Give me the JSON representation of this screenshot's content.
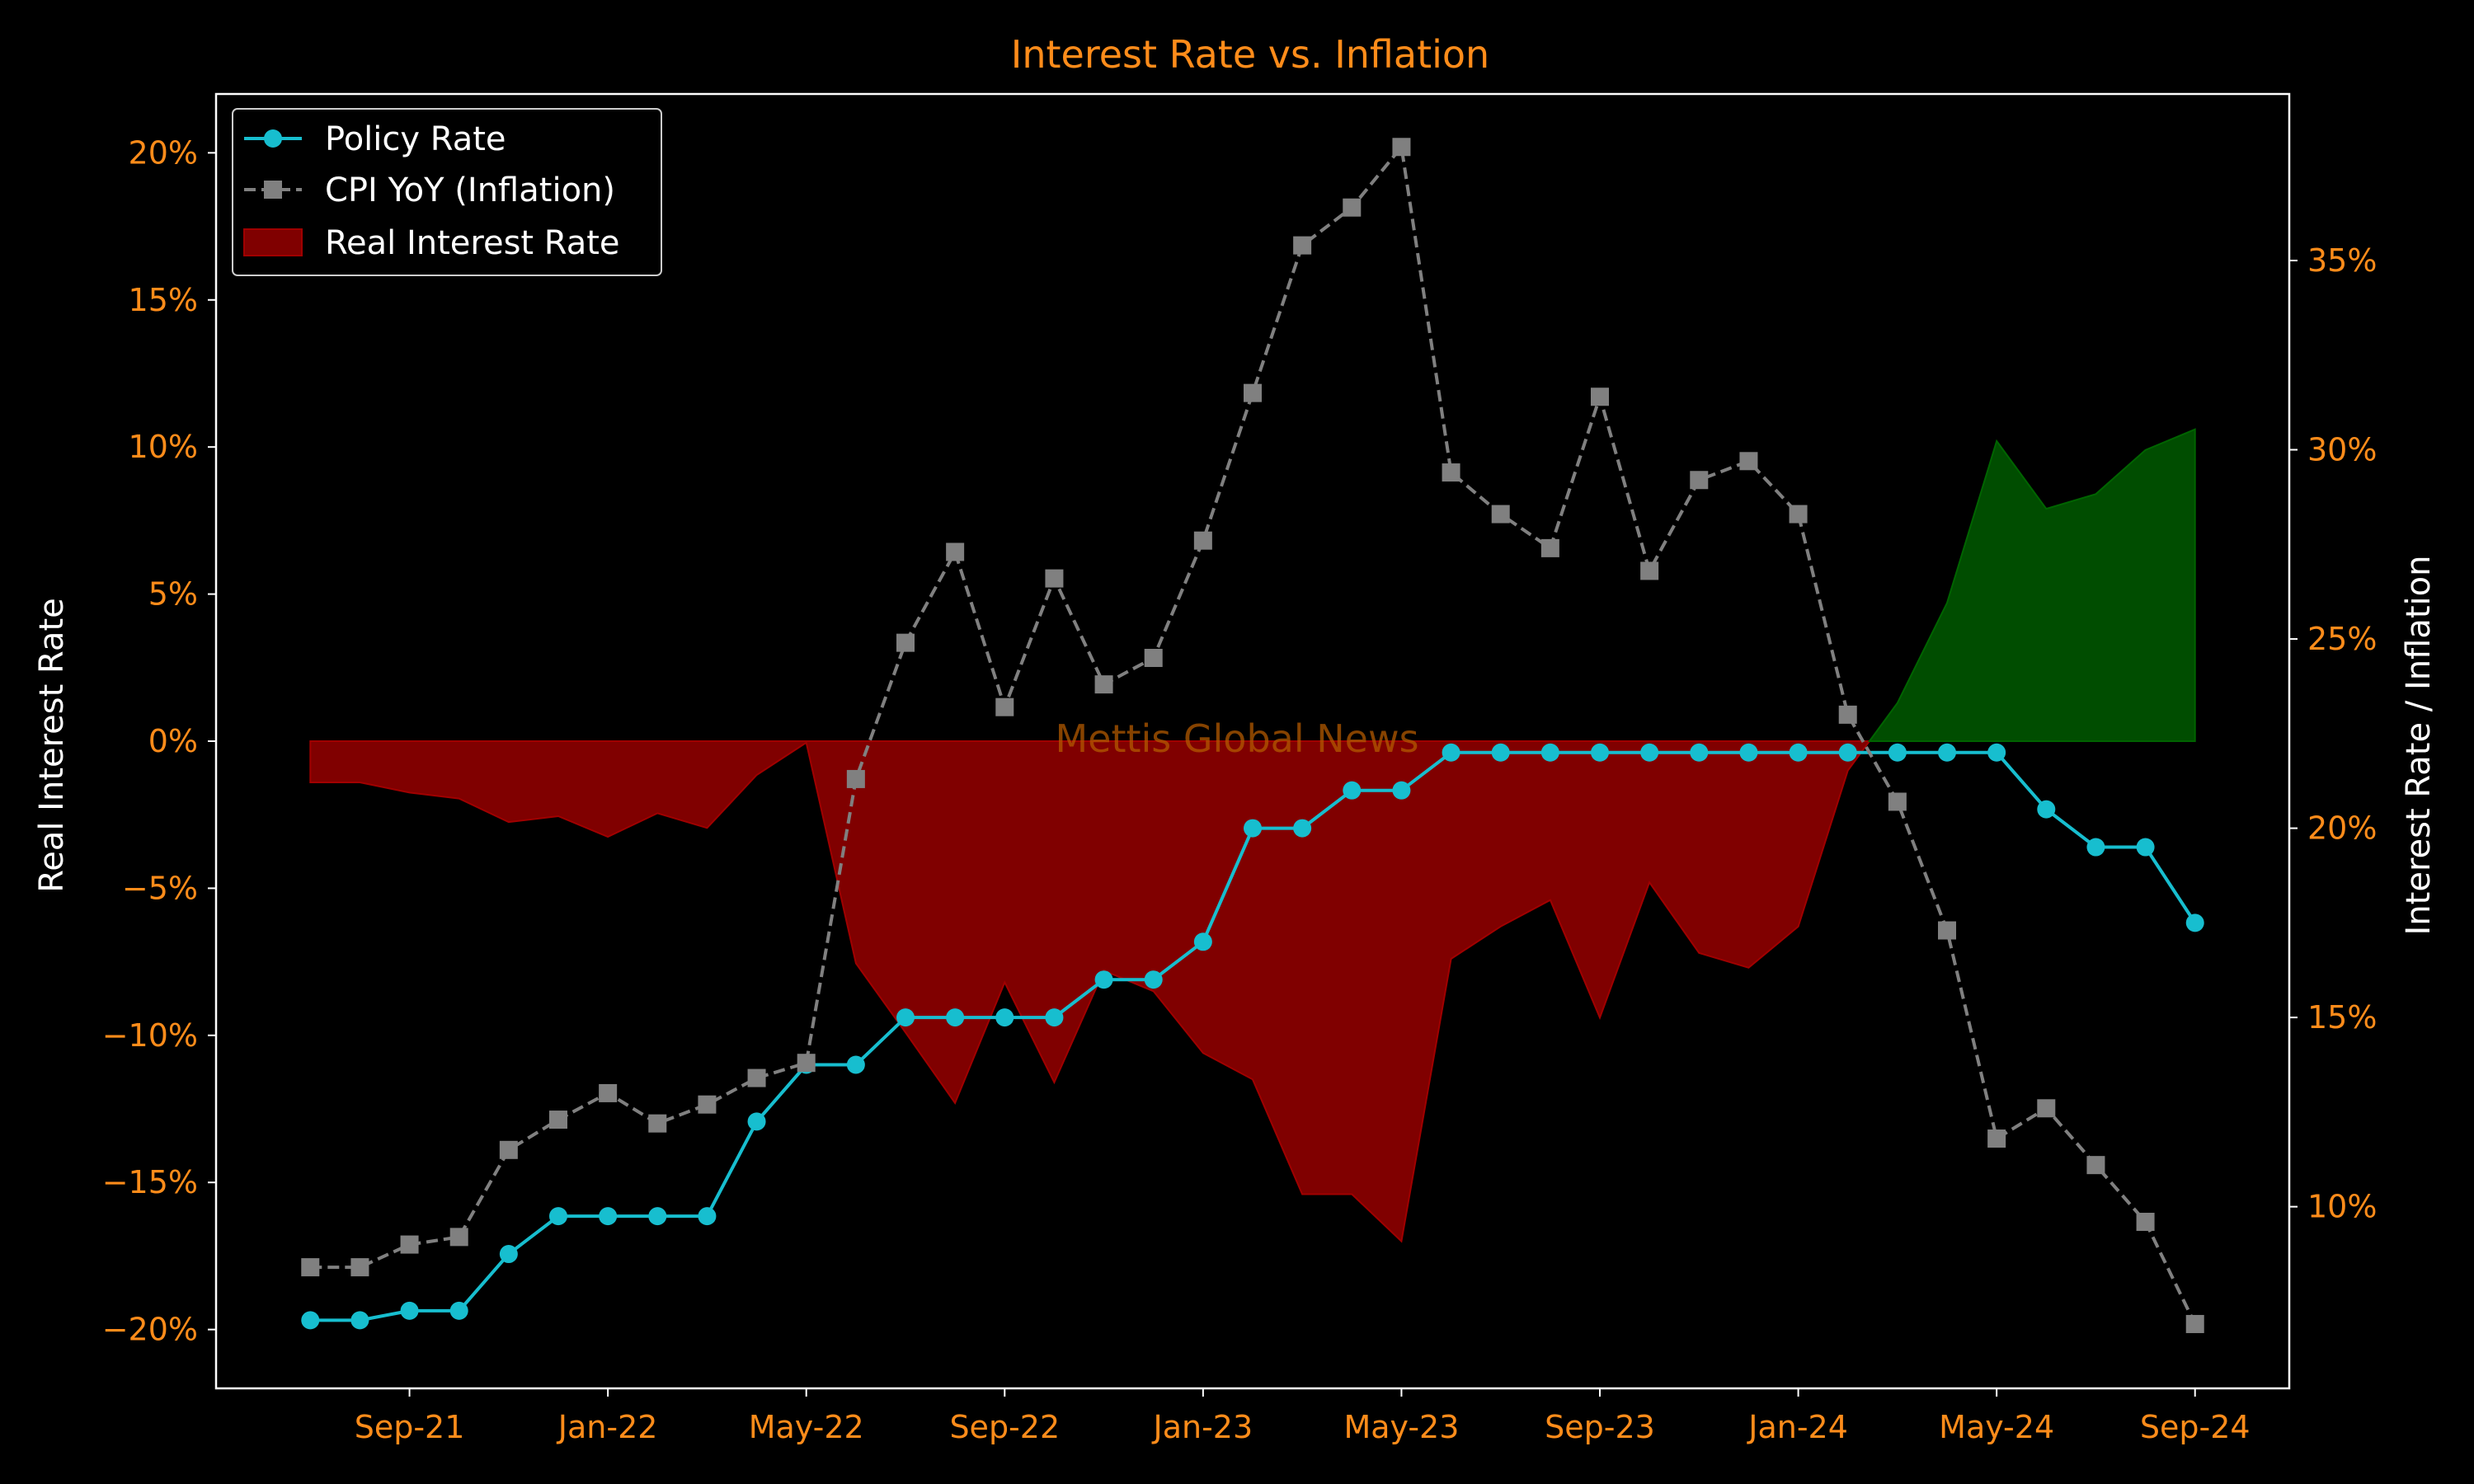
{
  "chart_data": {
    "type": "line",
    "title": "Interest Rate vs. Inflation",
    "watermark": "Mettis Global News",
    "ylabel_left": "Real Interest Rate",
    "ylabel_right": "Interest Rate / Inflation",
    "ylim_left": [
      -22,
      22
    ],
    "ylim_right": [
      5.2,
      39.4
    ],
    "yticks_left": [
      -20,
      -15,
      -10,
      -5,
      0,
      5,
      10,
      15,
      20
    ],
    "ytick_labels_left": [
      "−20%",
      "−15%",
      "−10%",
      "−5%",
      "0%",
      "5%",
      "10%",
      "15%",
      "20%"
    ],
    "yticks_right": [
      10,
      15,
      20,
      25,
      30,
      35
    ],
    "ytick_labels_right": [
      "10%",
      "15%",
      "20%",
      "25%",
      "30%",
      "35%"
    ],
    "x_dates": [
      "2021-07",
      "2021-08",
      "2021-09",
      "2021-10",
      "2021-11",
      "2021-12",
      "2022-01",
      "2022-02",
      "2022-03",
      "2022-04",
      "2022-05",
      "2022-06",
      "2022-07",
      "2022-08",
      "2022-09",
      "2022-10",
      "2022-11",
      "2022-12",
      "2023-01",
      "2023-02",
      "2023-03",
      "2023-04",
      "2023-05",
      "2023-06",
      "2023-07",
      "2023-08",
      "2023-09",
      "2023-10",
      "2023-11",
      "2023-12",
      "2024-01",
      "2024-02",
      "2024-03",
      "2024-04",
      "2024-05",
      "2024-06",
      "2024-07",
      "2024-08",
      "2024-09"
    ],
    "xtick_dates": [
      "2021-09",
      "2022-01",
      "2022-05",
      "2022-09",
      "2023-01",
      "2023-05",
      "2023-09",
      "2024-01",
      "2024-05",
      "2024-09"
    ],
    "xtick_labels": [
      "Sep-21",
      "Jan-22",
      "May-22",
      "Sep-22",
      "Jan-23",
      "May-23",
      "Sep-23",
      "Jan-24",
      "May-24",
      "Sep-24"
    ],
    "series": [
      {
        "name": "Policy Rate",
        "axis": "right",
        "color": "#17becf",
        "marker": "circle",
        "linestyle": "solid",
        "values": [
          7.0,
          7.0,
          7.25,
          7.25,
          8.75,
          9.75,
          9.75,
          9.75,
          9.75,
          12.25,
          13.75,
          13.75,
          15.0,
          15.0,
          15.0,
          15.0,
          16.0,
          16.0,
          17.0,
          20.0,
          20.0,
          21.0,
          21.0,
          22.0,
          22.0,
          22.0,
          22.0,
          22.0,
          22.0,
          22.0,
          22.0,
          22.0,
          22.0,
          22.0,
          22.0,
          20.5,
          19.5,
          19.5,
          17.5
        ]
      },
      {
        "name": "CPI YoY (Inflation)",
        "axis": "right",
        "color": "#808080",
        "marker": "square",
        "linestyle": "dashed",
        "values": [
          8.4,
          8.4,
          9.0,
          9.2,
          11.5,
          12.3,
          13.0,
          12.2,
          12.7,
          13.4,
          13.8,
          21.3,
          24.9,
          27.3,
          23.2,
          26.6,
          23.8,
          24.5,
          27.6,
          31.5,
          35.4,
          36.4,
          38.0,
          29.4,
          28.3,
          27.4,
          31.4,
          26.8,
          29.2,
          29.7,
          28.3,
          23.0,
          20.7,
          17.3,
          11.8,
          12.6,
          11.1,
          9.6,
          6.9
        ]
      }
    ],
    "fill_series": {
      "name": "Real Interest Rate",
      "axis": "left",
      "color_negative": "#800000",
      "color_positive": "#004d00",
      "values": [
        -1.4,
        -1.4,
        -1.75,
        -1.95,
        -2.75,
        -2.55,
        -3.25,
        -2.45,
        -2.95,
        -1.15,
        -0.05,
        -7.55,
        -9.9,
        -12.3,
        -8.2,
        -11.6,
        -7.8,
        -8.5,
        -10.6,
        -11.5,
        -15.4,
        -15.4,
        -17.0,
        -7.4,
        -6.3,
        -5.4,
        -9.4,
        -4.8,
        -7.2,
        -7.7,
        -6.3,
        -1.0,
        1.3,
        4.7,
        10.2,
        7.9,
        8.4,
        9.9,
        10.6
      ]
    },
    "legend": {
      "placement": "top-left",
      "entries": [
        "Policy Rate",
        "CPI YoY (Inflation)",
        "Real Interest Rate"
      ]
    },
    "colors": {
      "background": "#000000",
      "accent": "#ff8c1a",
      "text": "#ffffff",
      "axes": "#ffffff"
    }
  }
}
